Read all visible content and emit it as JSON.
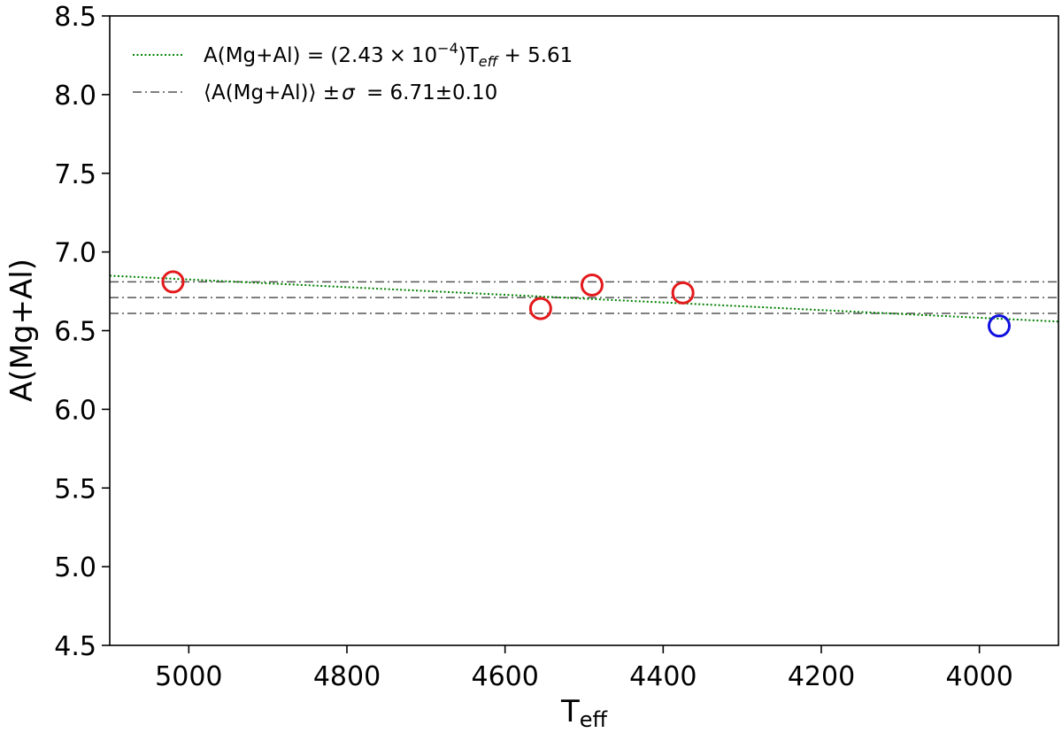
{
  "chart_data": {
    "type": "scatter",
    "xlabel_main": "T",
    "xlabel_sub": "eff",
    "ylabel": "A(Mg+Al)",
    "xlim": [
      5100,
      3900
    ],
    "ylim": [
      4.5,
      8.5
    ],
    "xticks": [
      5000,
      4800,
      4600,
      4400,
      4200,
      4000
    ],
    "yticks": [
      4.5,
      5.0,
      5.5,
      6.0,
      6.5,
      7.0,
      7.5,
      8.0,
      8.5
    ],
    "grid": false,
    "legend_position": "top-left",
    "series": [
      {
        "color": "#e31a1c",
        "marker": "open-circle",
        "points": [
          {
            "x": 5020,
            "y": 6.81
          },
          {
            "x": 4555,
            "y": 6.64
          },
          {
            "x": 4490,
            "y": 6.79
          },
          {
            "x": 4375,
            "y": 6.74
          }
        ]
      },
      {
        "color": "#1010e0",
        "marker": "open-circle",
        "points": [
          {
            "x": 3975,
            "y": 6.53
          }
        ]
      }
    ],
    "fit_line": {
      "label_prefix": "A(Mg+Al) = (2.43",
      "label_times": "×",
      "label_ten": "10",
      "label_exp": "−4",
      "label_paren": ")T",
      "label_sub": "eff",
      "label_suffix": " + 5.61",
      "slope": 0.000243,
      "intercept": 5.61,
      "color": "#008000",
      "style": "dotted"
    },
    "mean_band": {
      "label_text": "⟨A(Mg+Al)⟩ ±",
      "label_sigma": "σ",
      "label_value": " = 6.71±0.10",
      "mean": 6.71,
      "sigma": 0.1,
      "color": "#555555",
      "style": "dash-dot"
    }
  }
}
